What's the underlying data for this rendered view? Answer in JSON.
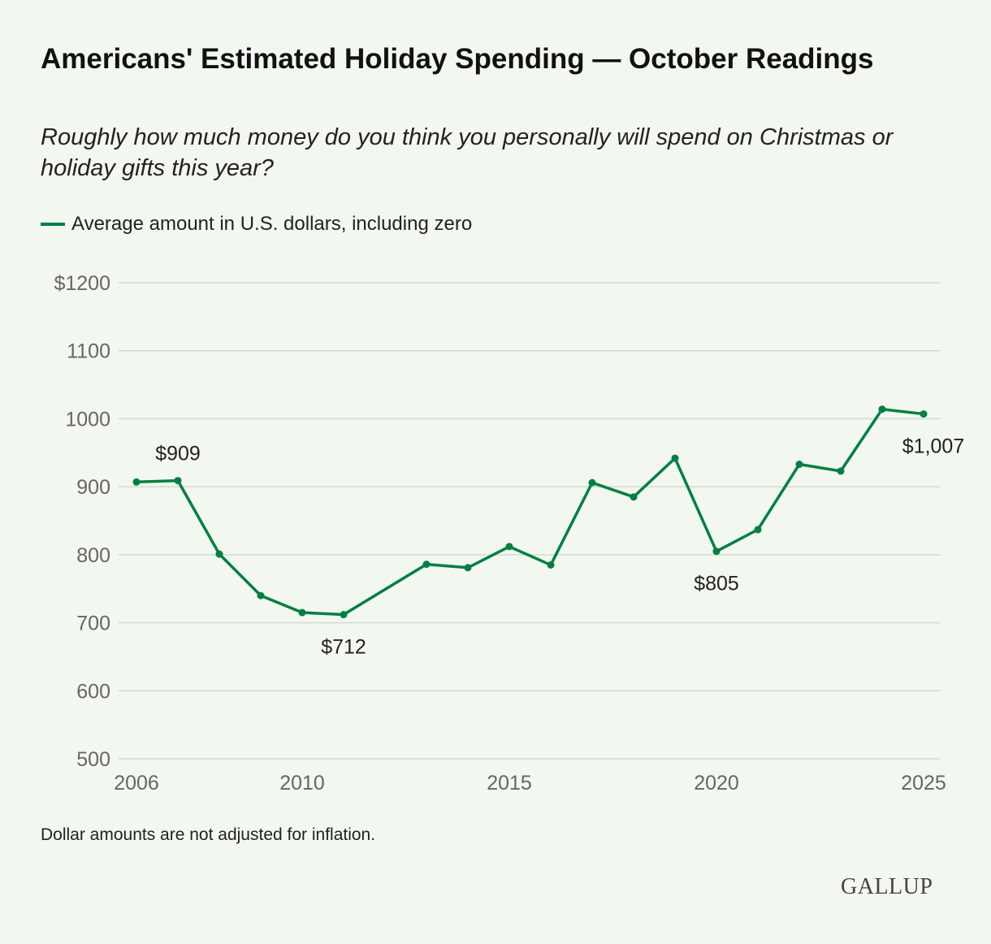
{
  "chart_data": {
    "type": "line",
    "title": "Americans' Estimated Holiday Spending — October Readings",
    "subtitle": "Roughly how much money do you think you personally will spend on Christmas or holiday gifts this year?",
    "legend": "Average amount in U.S. dollars, including zero",
    "legend_position": "top-left",
    "color": "#008040",
    "grid": true,
    "xlim": [
      2006,
      2025
    ],
    "ylim": [
      500,
      1200
    ],
    "x_ticks": [
      "2006",
      "2010",
      "2015",
      "2020",
      "2025"
    ],
    "x_tick_values": [
      2006,
      2010,
      2015,
      2020,
      2025
    ],
    "y_ticks": [
      "500",
      "600",
      "700",
      "800",
      "900",
      "1000",
      "1100",
      "$1200"
    ],
    "y_tick_values": [
      500,
      600,
      700,
      800,
      900,
      1000,
      1100,
      1200
    ],
    "x": [
      2006,
      2007,
      2008,
      2009,
      2010,
      2011,
      2013,
      2014,
      2015,
      2016,
      2017,
      2018,
      2019,
      2020,
      2021,
      2022,
      2023,
      2024,
      2025
    ],
    "values": [
      907,
      909,
      801,
      740,
      715,
      712,
      786,
      781,
      812,
      785,
      906,
      885,
      942,
      805,
      837,
      933,
      923,
      1014,
      1007
    ],
    "annotations": [
      {
        "x": 2007,
        "y": 909,
        "text": "$909",
        "pos": "above"
      },
      {
        "x": 2011,
        "y": 712,
        "text": "$712",
        "pos": "below"
      },
      {
        "x": 2020,
        "y": 805,
        "text": "$805",
        "pos": "below"
      },
      {
        "x": 2025,
        "y": 1007,
        "text": "$1,007",
        "pos": "below"
      }
    ],
    "note": "Dollar amounts are not adjusted for inflation."
  },
  "brand": "GALLUP"
}
